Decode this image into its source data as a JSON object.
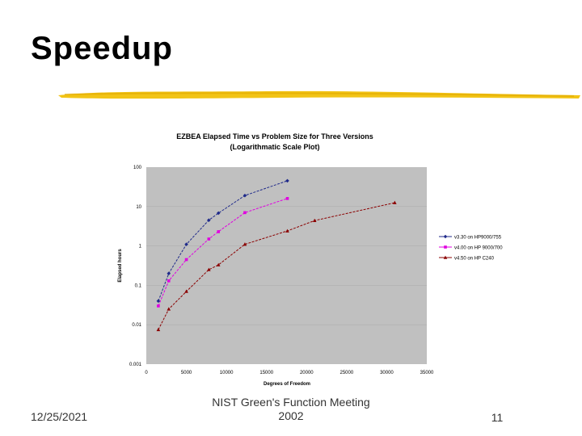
{
  "slide": {
    "title": "Speedup",
    "footer_date": "12/25/2021",
    "footer_center_line1": "NIST Green's Function Meeting",
    "footer_center_line2": "2002",
    "page_number": "11",
    "accent_color": "#f2c416"
  },
  "chart_data": {
    "type": "line",
    "title": "EZBEA Elapsed Time vs Problem Size for Three Versions",
    "subtitle": "(Logarithmatic Scale Plot)",
    "xlabel": "Degrees of Freedom",
    "ylabel": "Elapsed hours",
    "xlim": [
      0,
      35000
    ],
    "ylim": [
      0.001,
      100
    ],
    "yscale": "log",
    "x_ticks": [
      "0",
      "5000",
      "10000",
      "15000",
      "20000",
      "25000",
      "30000",
      "35000"
    ],
    "y_ticks": [
      "100",
      "10",
      "1",
      "0.1",
      "0.01",
      "0.001"
    ],
    "plot_background": "#c0c0c0",
    "legend_position": "right",
    "series": [
      {
        "name": "v3.30 on HP9000/755",
        "color": "#1f2a8a",
        "marker": "diamond",
        "x": [
          1500,
          2800,
          5000,
          7800,
          9000,
          12300,
          17600
        ],
        "y": [
          0.04,
          0.2,
          1.1,
          4.5,
          6.8,
          19,
          45
        ]
      },
      {
        "name": "v4.00 on HP 9000/700",
        "color": "#e000e0",
        "marker": "square",
        "x": [
          1500,
          2800,
          5000,
          7800,
          9000,
          12300,
          17600
        ],
        "y": [
          0.03,
          0.13,
          0.45,
          1.5,
          2.3,
          7,
          16
        ]
      },
      {
        "name": "v4.50 on HP C240",
        "color": "#8b0000",
        "marker": "triangle",
        "x": [
          1500,
          2800,
          5000,
          7800,
          9000,
          12300,
          17600,
          21000,
          31000
        ],
        "y": [
          0.0075,
          0.025,
          0.07,
          0.25,
          0.33,
          1.1,
          2.4,
          4.4,
          12.5
        ]
      }
    ]
  }
}
